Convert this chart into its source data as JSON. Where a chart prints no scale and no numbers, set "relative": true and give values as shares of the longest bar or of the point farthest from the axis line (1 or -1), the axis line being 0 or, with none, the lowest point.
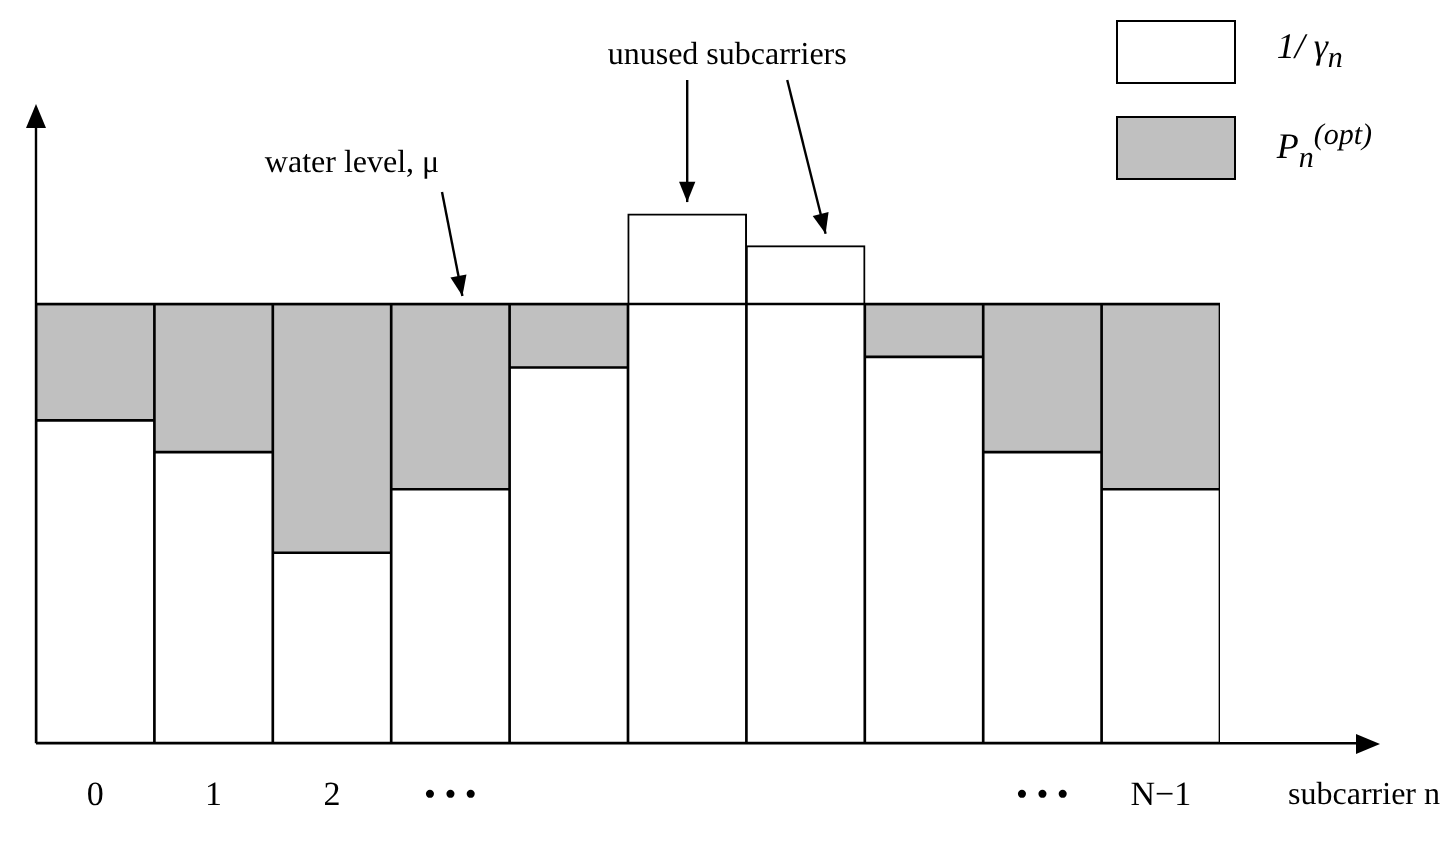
{
  "chart_data": {
    "type": "bar",
    "stacked": true,
    "relative": true,
    "xlabel": "subcarrier n",
    "categories": [
      "0",
      "1",
      "2",
      "• • •",
      null,
      null,
      null,
      null,
      "• • •",
      "N−1"
    ],
    "series": [
      {
        "name": "1/ γ$_{n}$",
        "color": "#ffffff",
        "values": [
          0.61,
          0.55,
          0.36,
          0.48,
          0.71,
          1.0,
          0.94,
          0.73,
          0.55,
          0.48
        ]
      },
      {
        "name": "P$_{n}$$^{(opt)}$",
        "color": "#c0c0c0",
        "values": [
          0.22,
          0.28,
          0.47,
          0.35,
          0.12,
          0,
          0,
          0.1,
          0.28,
          0.35
        ]
      }
    ],
    "ref_lines": [
      {
        "axis": "y",
        "value": 0.83,
        "label": "water level, μ",
        "color": "#000000"
      }
    ],
    "annotations": [
      "unused subcarriers"
    ],
    "legend": "top right",
    "grid": false,
    "tick_labels": "x"
  }
}
